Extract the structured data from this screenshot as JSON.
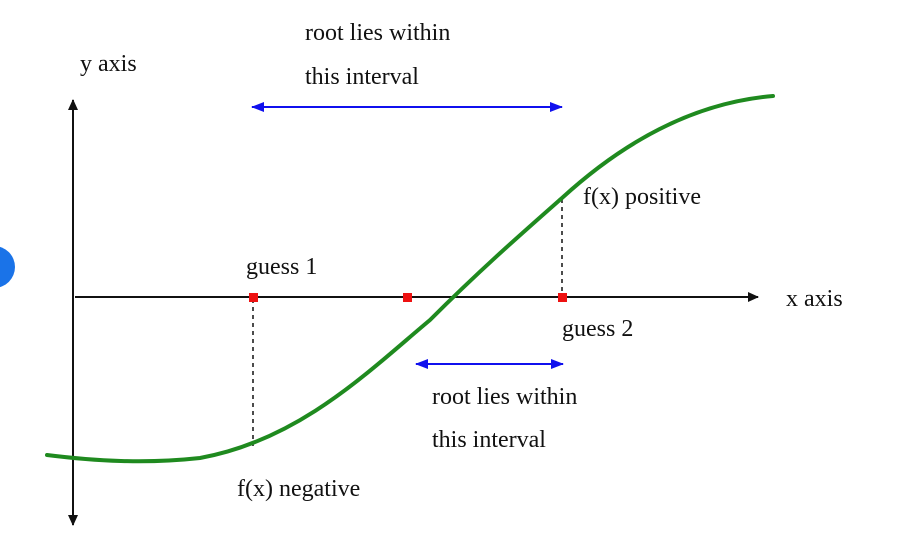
{
  "labels": {
    "y_axis": "y axis",
    "x_axis": "x axis",
    "top_interval_line1": "root lies within",
    "top_interval_line2": "this interval",
    "bottom_interval_line1": "root lies within",
    "bottom_interval_line2": "this interval",
    "guess1": "guess 1",
    "guess2": "guess 2",
    "fx_positive": "f(x) positive",
    "fx_negative": "f(x) negative"
  },
  "colors": {
    "curve": "#1f8a1f",
    "interval_arrow": "#1010ee",
    "guess_marker": "#ee1111",
    "axis": "#111111",
    "edge_dot": "#1a73e8"
  }
}
